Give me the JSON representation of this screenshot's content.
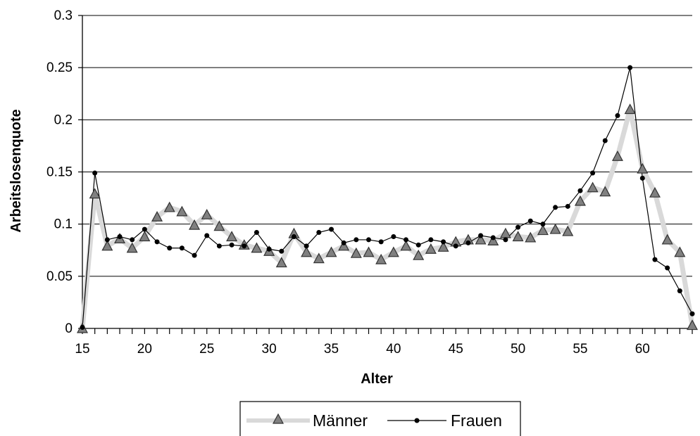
{
  "chart_data": {
    "type": "line",
    "title": "",
    "xlabel": "Alter",
    "ylabel": "Arbeitslosenquote",
    "xlim": [
      15,
      64
    ],
    "ylim": [
      0,
      0.3
    ],
    "x_ticks": [
      "15",
      "20",
      "25",
      "30",
      "35",
      "40",
      "45",
      "50",
      "55",
      "60"
    ],
    "y_ticks": [
      "0",
      "0.05",
      "0.1",
      "0.15",
      "0.2",
      "0.25",
      "0.3"
    ],
    "grid": "horizontal",
    "legend_position": "bottom",
    "x": [
      15,
      16,
      17,
      18,
      19,
      20,
      21,
      22,
      23,
      24,
      25,
      26,
      27,
      28,
      29,
      30,
      31,
      32,
      33,
      34,
      35,
      36,
      37,
      38,
      39,
      40,
      41,
      42,
      43,
      44,
      45,
      46,
      47,
      48,
      49,
      50,
      51,
      52,
      53,
      54,
      55,
      56,
      57,
      58,
      59,
      60,
      61,
      62,
      63,
      64
    ],
    "series": [
      {
        "name": "Männer",
        "line_color": "#d9d9d9",
        "marker": "triangle",
        "marker_color": "#808080",
        "values": [
          0.0,
          0.129,
          0.079,
          0.086,
          0.077,
          0.088,
          0.107,
          0.116,
          0.112,
          0.099,
          0.109,
          0.098,
          0.088,
          0.08,
          0.077,
          0.074,
          0.063,
          0.091,
          0.073,
          0.067,
          0.073,
          0.079,
          0.072,
          0.073,
          0.066,
          0.073,
          0.079,
          0.07,
          0.076,
          0.078,
          0.083,
          0.085,
          0.085,
          0.084,
          0.091,
          0.088,
          0.087,
          0.094,
          0.095,
          0.093,
          0.122,
          0.135,
          0.131,
          0.165,
          0.21,
          0.153,
          0.13,
          0.085,
          0.073,
          0.003
        ]
      },
      {
        "name": "Frauen",
        "line_color": "#000000",
        "marker": "circle",
        "marker_color": "#000000",
        "values": [
          0.001,
          0.149,
          0.085,
          0.088,
          0.085,
          0.095,
          0.083,
          0.077,
          0.077,
          0.07,
          0.089,
          0.079,
          0.08,
          0.079,
          0.092,
          0.076,
          0.074,
          0.088,
          0.079,
          0.092,
          0.095,
          0.082,
          0.085,
          0.085,
          0.083,
          0.088,
          0.085,
          0.08,
          0.085,
          0.083,
          0.079,
          0.082,
          0.089,
          0.087,
          0.085,
          0.097,
          0.103,
          0.1,
          0.116,
          0.117,
          0.132,
          0.149,
          0.18,
          0.204,
          0.25,
          0.144,
          0.066,
          0.058,
          0.036,
          0.014
        ]
      }
    ]
  }
}
